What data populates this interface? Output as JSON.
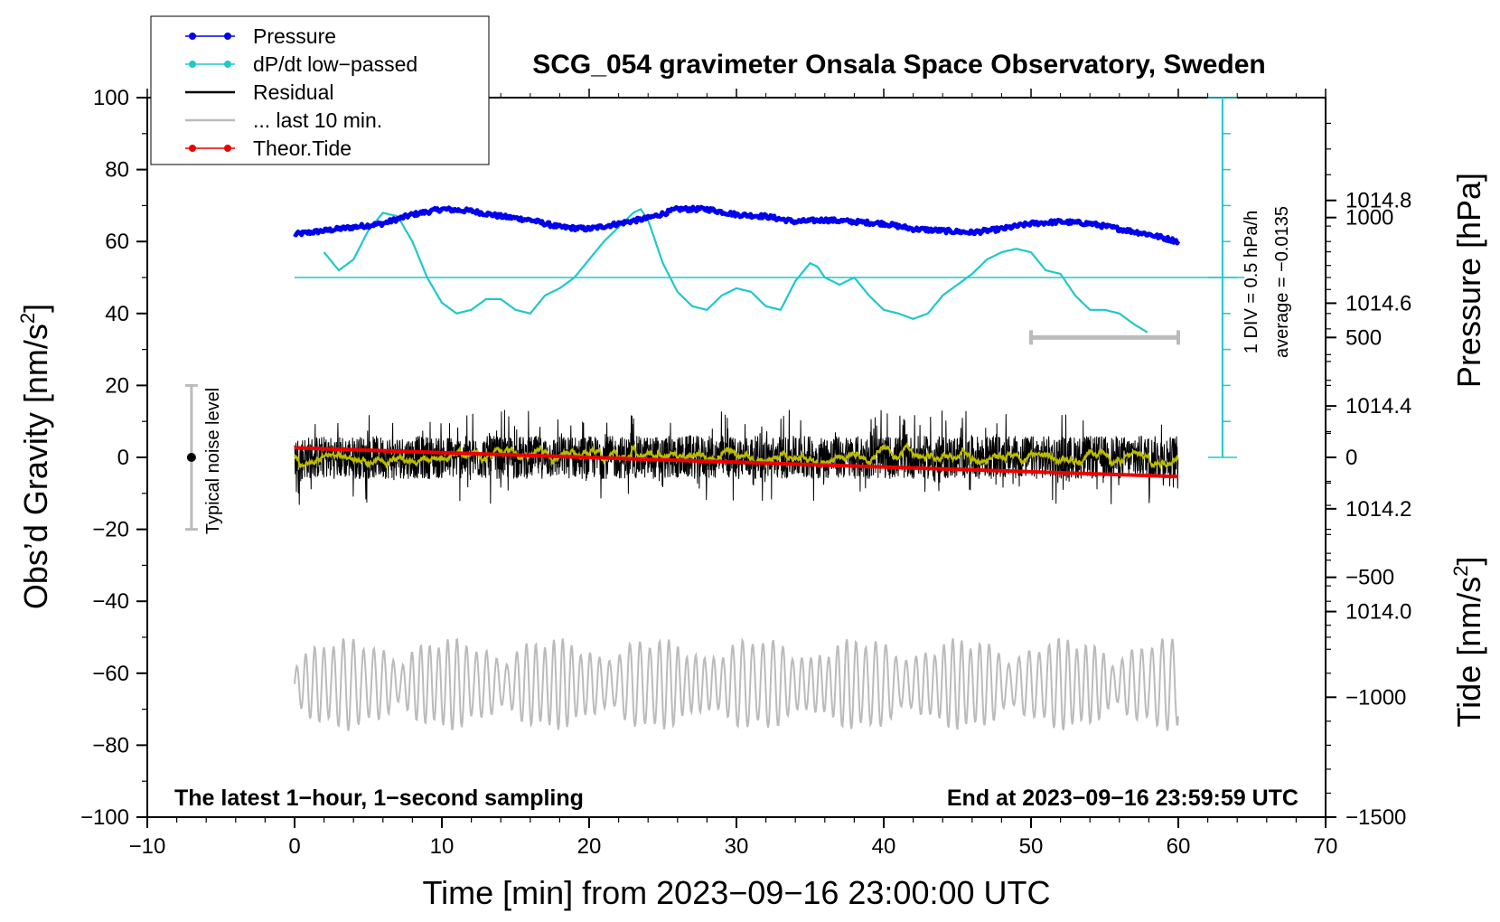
{
  "chart_data": {
    "type": "line",
    "title": "SCG_054 gravimeter Onsala Space Observatory, Sweden",
    "xlabel": "Time [min] from 2023−09−16 23:00:00 UTC",
    "ylabel_main": "Obs’d Gravity [nm/s",
    "ylabel_sup": "2",
    "ylabel_close": "]",
    "ylabel_pressure": "Pressure [hPa]",
    "ylabel_tide_main": "Tide [nm/s",
    "ylabel_tide_sup": "2",
    "ylabel_tide_close": "]",
    "xlim": [
      -10,
      70
    ],
    "ylim": [
      -100,
      100
    ],
    "pressure_lim": [
      1013.6,
      1015.0
    ],
    "tide_lim": [
      -1500,
      1500
    ],
    "x_ticks": [
      -10,
      0,
      10,
      20,
      30,
      40,
      50,
      60,
      70
    ],
    "x_tick_labels": [
      "−10",
      "0",
      "10",
      "20",
      "30",
      "40",
      "50",
      "60",
      "70"
    ],
    "y_ticks": [
      -100,
      -80,
      -60,
      -40,
      -20,
      0,
      20,
      40,
      60,
      80,
      100
    ],
    "y_tick_labels": [
      "−100",
      "−80",
      "−60",
      "−40",
      "−20",
      "0",
      "20",
      "40",
      "60",
      "80",
      "100"
    ],
    "pressure_ticks": [
      1014.0,
      1014.2,
      1014.4,
      1014.6,
      1014.8
    ],
    "pressure_tick_labels": [
      "1014.0",
      "1014.2",
      "1014.4",
      "1014.6",
      "1014.8"
    ],
    "tide_ticks": [
      -1500,
      -1000,
      -500,
      0,
      500,
      1000
    ],
    "tide_tick_labels": [
      "−1500",
      "−1000",
      "−500",
      "0",
      "500",
      "1000"
    ],
    "legend": {
      "position": "top-left",
      "entries": [
        {
          "label": "Pressure",
          "color": "#0000ee",
          "marker": true
        },
        {
          "label": "dP/dt low−passed",
          "color": "#20c8c8",
          "marker": true
        },
        {
          "label": "Residual",
          "color": "#000000",
          "marker": false
        },
        {
          "label": "... last 10 min.",
          "color": "#bbbbbb",
          "marker": false
        },
        {
          "label": "Theor.Tide",
          "color": "#ee0000",
          "marker": true
        }
      ]
    },
    "colors": {
      "pressure": "#0000ee",
      "dpdt": "#20c8c8",
      "residual": "#000000",
      "smoothed_residual": "#bbbb00",
      "last10": "#bbbbbb",
      "tide": "#ee0000",
      "noise_bar": "#bbbbbb"
    },
    "pressure_series": {
      "name": "Pressure",
      "x": [
        0,
        2,
        4,
        6,
        8,
        10,
        12,
        14,
        16,
        18,
        20,
        22,
        24,
        26,
        28,
        30,
        32,
        34,
        36,
        38,
        40,
        42,
        44,
        46,
        48,
        50,
        52,
        54,
        56,
        58,
        60
      ],
      "values_gravity_units": [
        62,
        63,
        64,
        65,
        67.5,
        69,
        68.5,
        67,
        66,
        64,
        63.5,
        65,
        66.5,
        69,
        69,
        67.5,
        67,
        65.5,
        66,
        65.5,
        65,
        63.5,
        63,
        62.5,
        63.5,
        65,
        65.5,
        65,
        63.5,
        62,
        60
      ]
    },
    "dpdt_series": {
      "name": "dP/dt low−passed",
      "x": [
        2,
        3,
        4,
        5,
        6,
        7,
        8,
        9,
        10,
        11,
        12,
        13,
        14,
        15,
        16,
        17,
        18,
        19,
        20,
        21,
        22,
        23,
        23.5,
        24,
        25,
        26,
        27,
        28,
        29,
        30,
        31,
        32,
        33,
        34,
        35,
        35.5,
        36,
        37,
        38,
        39,
        40,
        41,
        42,
        43,
        44,
        45,
        46,
        47,
        48,
        49,
        50,
        51,
        52,
        53,
        54,
        55,
        56,
        57,
        58
      ],
      "values_gravity_units": [
        57,
        52,
        55,
        63,
        68,
        67,
        60,
        50,
        43,
        40,
        41,
        44,
        44,
        41,
        40,
        45,
        47,
        50,
        55,
        60,
        64,
        68,
        69,
        66,
        54,
        46,
        42,
        41,
        45,
        47,
        46,
        42,
        41,
        49,
        54,
        53,
        50,
        48,
        50,
        45,
        41,
        40,
        38.5,
        40,
        45,
        48,
        51,
        55,
        57,
        58,
        57,
        52,
        51,
        45,
        41,
        41,
        40,
        37,
        34.5
      ]
    },
    "dpdt_reference": {
      "value_gravity_units": 50,
      "x_range": [
        0,
        64.5
      ]
    },
    "dpdt_scale_label": "1 DIV = 0.5 hPa/h",
    "dpdt_average_label": "average = −0.0135",
    "noise_bar": {
      "x": -7,
      "low": -20,
      "high": 20,
      "label": "Typical noise level"
    },
    "residual": {
      "x_range": [
        0,
        60
      ],
      "amplitude": 6,
      "note": "1-second noisy residual centred on 0 nm/s2; yellow smoothed curve overlaid"
    },
    "last10": {
      "x_range": [
        0,
        60
      ],
      "center_gravity_units": -63,
      "note": "last 10 min of residual replotted, gray trace"
    },
    "last10_bar": {
      "x_range": [
        50,
        60
      ],
      "tide_level": 500
    },
    "tide_series": {
      "name": "Theor.Tide",
      "x": [
        0,
        10,
        20,
        30,
        40,
        50,
        60
      ],
      "values_tide_units": [
        40,
        20,
        0,
        -20,
        -40,
        -60,
        -80
      ]
    },
    "footer_left": "The latest 1−hour, 1−second sampling",
    "footer_right": "End at 2023−09−16 23:59:59 UTC"
  }
}
